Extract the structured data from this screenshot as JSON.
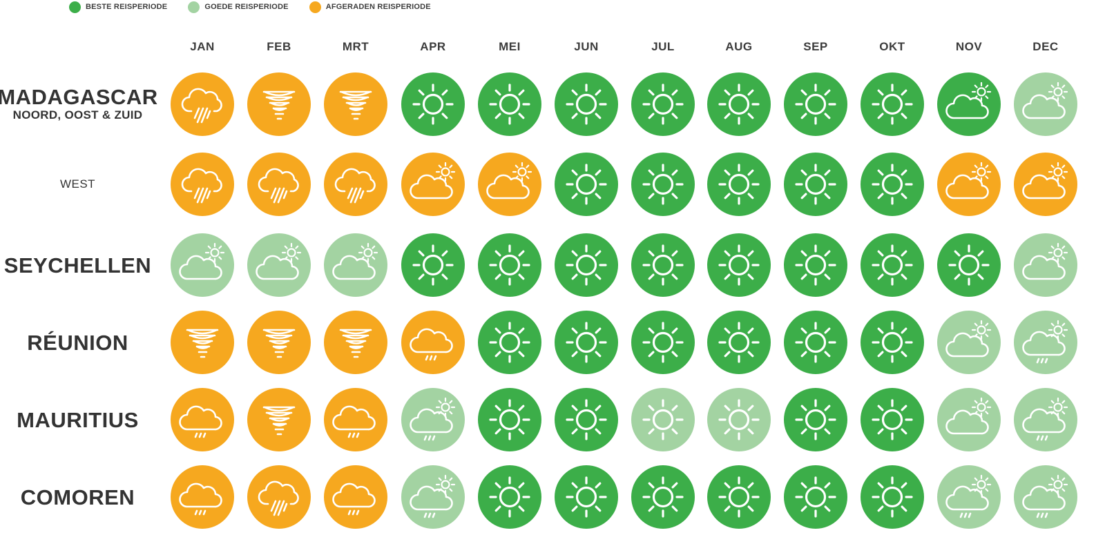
{
  "legend": [
    {
      "label": "BESTE REISPERIODE",
      "color": "#3cae49"
    },
    {
      "label": "GOEDE REISPERIODE",
      "color": "#a3d3a2"
    },
    {
      "label": "AFGERADEN REISPERIODE",
      "color": "#f6a81f"
    }
  ],
  "months": [
    "JAN",
    "FEB",
    "MRT",
    "APR",
    "MEI",
    "JUN",
    "JUL",
    "AUG",
    "SEP",
    "OKT",
    "NOV",
    "DEC"
  ],
  "rows": [
    {
      "name": "MADAGASCAR",
      "sub": "NOORD, OOST & ZUID",
      "cells": [
        [
          "a",
          "storm"
        ],
        [
          "a",
          "tornado"
        ],
        [
          "a",
          "tornado"
        ],
        [
          "b",
          "sun"
        ],
        [
          "b",
          "sun"
        ],
        [
          "b",
          "sun"
        ],
        [
          "b",
          "sun"
        ],
        [
          "b",
          "sun"
        ],
        [
          "b",
          "sun"
        ],
        [
          "b",
          "sun"
        ],
        [
          "b",
          "partly"
        ],
        [
          "g",
          "partly"
        ]
      ]
    },
    {
      "name": "WEST",
      "small": true,
      "cells": [
        [
          "a",
          "storm"
        ],
        [
          "a",
          "storm"
        ],
        [
          "a",
          "storm"
        ],
        [
          "a",
          "partly"
        ],
        [
          "a",
          "partly"
        ],
        [
          "b",
          "sun"
        ],
        [
          "b",
          "sun"
        ],
        [
          "b",
          "sun"
        ],
        [
          "b",
          "sun"
        ],
        [
          "b",
          "sun"
        ],
        [
          "a",
          "partly"
        ],
        [
          "a",
          "partly"
        ]
      ]
    },
    {
      "name": "SEYCHELLEN",
      "cells": [
        [
          "g",
          "partly"
        ],
        [
          "g",
          "partly"
        ],
        [
          "g",
          "partly"
        ],
        [
          "b",
          "sun"
        ],
        [
          "b",
          "sun"
        ],
        [
          "b",
          "sun"
        ],
        [
          "b",
          "sun"
        ],
        [
          "b",
          "sun"
        ],
        [
          "b",
          "sun"
        ],
        [
          "b",
          "sun"
        ],
        [
          "b",
          "sun"
        ],
        [
          "g",
          "partly"
        ]
      ]
    },
    {
      "name": "RÉUNION",
      "cells": [
        [
          "a",
          "tornado"
        ],
        [
          "a",
          "tornado"
        ],
        [
          "a",
          "tornado"
        ],
        [
          "a",
          "drizzle"
        ],
        [
          "b",
          "sun"
        ],
        [
          "b",
          "sun"
        ],
        [
          "b",
          "sun"
        ],
        [
          "b",
          "sun"
        ],
        [
          "b",
          "sun"
        ],
        [
          "b",
          "sun"
        ],
        [
          "g",
          "partly"
        ],
        [
          "g",
          "partlyrain"
        ]
      ]
    },
    {
      "name": "MAURITIUS",
      "cells": [
        [
          "a",
          "drizzle"
        ],
        [
          "a",
          "tornado"
        ],
        [
          "a",
          "drizzle"
        ],
        [
          "g",
          "partlyrain"
        ],
        [
          "b",
          "sun"
        ],
        [
          "b",
          "sun"
        ],
        [
          "g",
          "sun"
        ],
        [
          "g",
          "sun"
        ],
        [
          "b",
          "sun"
        ],
        [
          "b",
          "sun"
        ],
        [
          "g",
          "partly"
        ],
        [
          "g",
          "partlyrain"
        ]
      ]
    },
    {
      "name": "COMOREN",
      "cells": [
        [
          "a",
          "drizzle"
        ],
        [
          "a",
          "storm"
        ],
        [
          "a",
          "drizzle"
        ],
        [
          "g",
          "partlyrain"
        ],
        [
          "b",
          "sun"
        ],
        [
          "b",
          "sun"
        ],
        [
          "b",
          "sun"
        ],
        [
          "b",
          "sun"
        ],
        [
          "b",
          "sun"
        ],
        [
          "b",
          "sun"
        ],
        [
          "g",
          "partlyrain"
        ],
        [
          "g",
          "partlyrain"
        ]
      ]
    }
  ],
  "colors": {
    "b": "#3cae49",
    "g": "#a3d3a2",
    "a": "#f6a81f"
  }
}
